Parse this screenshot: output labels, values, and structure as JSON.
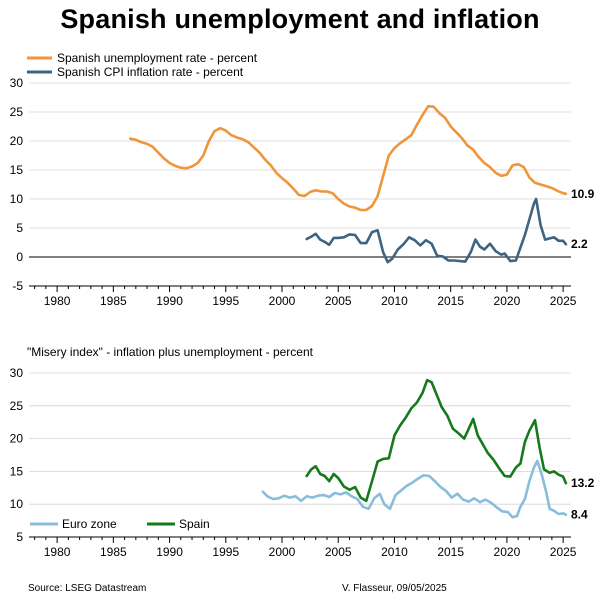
{
  "title": "Spanish unemployment and inflation",
  "source": "Source: LSEG Datastream",
  "credit": "V. Flasseur, 09/05/2025",
  "colors": {
    "unemployment": "#F0953A",
    "cpi": "#3D6482",
    "euro_zone": "#88BEDB",
    "spain": "#167A1C"
  },
  "chart_data": [
    {
      "type": "line",
      "subtitle": "",
      "xlim": [
        1977.5,
        2025.7
      ],
      "ylim": [
        -5,
        30
      ],
      "xticks": [
        1980,
        1985,
        1990,
        1995,
        2000,
        2005,
        2010,
        2015,
        2020,
        2025
      ],
      "yticks": [
        -5,
        0,
        5,
        10,
        15,
        20,
        25,
        30
      ],
      "grid": true,
      "zero_line": true,
      "legend_position": "top-left",
      "series": [
        {
          "name": "Spanish unemployment rate - percent",
          "color_key": "unemployment",
          "end_label": "10.9",
          "points": [
            [
              1986.5,
              20.4
            ],
            [
              1987,
              20.2
            ],
            [
              1987.5,
              19.8
            ],
            [
              1988,
              19.5
            ],
            [
              1988.5,
              19.0
            ],
            [
              1989,
              18.0
            ],
            [
              1989.5,
              17.0
            ],
            [
              1990,
              16.2
            ],
            [
              1990.5,
              15.7
            ],
            [
              1991,
              15.4
            ],
            [
              1991.5,
              15.3
            ],
            [
              1992,
              15.6
            ],
            [
              1992.5,
              16.2
            ],
            [
              1993,
              17.5
            ],
            [
              1993.5,
              20.0
            ],
            [
              1994,
              21.7
            ],
            [
              1994.5,
              22.2
            ],
            [
              1995,
              21.8
            ],
            [
              1995.5,
              21.0
            ],
            [
              1996,
              20.6
            ],
            [
              1996.5,
              20.3
            ],
            [
              1997,
              19.8
            ],
            [
              1997.5,
              18.9
            ],
            [
              1998,
              18.0
            ],
            [
              1998.5,
              16.8
            ],
            [
              1999,
              15.8
            ],
            [
              1999.5,
              14.5
            ],
            [
              2000,
              13.6
            ],
            [
              2000.5,
              12.8
            ],
            [
              2001,
              11.8
            ],
            [
              2001.5,
              10.7
            ],
            [
              2002,
              10.5
            ],
            [
              2002.5,
              11.2
            ],
            [
              2003,
              11.5
            ],
            [
              2003.5,
              11.3
            ],
            [
              2004,
              11.3
            ],
            [
              2004.5,
              11.0
            ],
            [
              2005,
              10.0
            ],
            [
              2005.5,
              9.2
            ],
            [
              2006,
              8.7
            ],
            [
              2006.5,
              8.5
            ],
            [
              2007,
              8.1
            ],
            [
              2007.5,
              8.1
            ],
            [
              2008,
              8.8
            ],
            [
              2008.5,
              10.5
            ],
            [
              2009,
              14.0
            ],
            [
              2009.5,
              17.5
            ],
            [
              2010,
              18.8
            ],
            [
              2010.5,
              19.6
            ],
            [
              2011,
              20.3
            ],
            [
              2011.5,
              21.0
            ],
            [
              2012,
              22.8
            ],
            [
              2012.5,
              24.5
            ],
            [
              2013,
              26.0
            ],
            [
              2013.5,
              25.9
            ],
            [
              2014,
              24.8
            ],
            [
              2014.5,
              24.0
            ],
            [
              2015,
              22.5
            ],
            [
              2015.5,
              21.5
            ],
            [
              2016,
              20.5
            ],
            [
              2016.5,
              19.2
            ],
            [
              2017,
              18.5
            ],
            [
              2017.5,
              17.2
            ],
            [
              2018,
              16.2
            ],
            [
              2018.5,
              15.5
            ],
            [
              2019,
              14.5
            ],
            [
              2019.5,
              14.0
            ],
            [
              2020,
              14.2
            ],
            [
              2020.5,
              15.8
            ],
            [
              2021,
              16.0
            ],
            [
              2021.5,
              15.5
            ],
            [
              2022,
              13.7
            ],
            [
              2022.5,
              12.8
            ],
            [
              2023,
              12.5
            ],
            [
              2023.5,
              12.2
            ],
            [
              2024,
              11.9
            ],
            [
              2024.5,
              11.4
            ],
            [
              2025,
              11.0
            ],
            [
              2025.25,
              10.9
            ]
          ]
        },
        {
          "name": "Spanish CPI inflation rate - percent",
          "color_key": "cpi",
          "end_label": "2.2",
          "points": [
            [
              2002.2,
              3.1
            ],
            [
              2002.6,
              3.5
            ],
            [
              2003,
              4.0
            ],
            [
              2003.4,
              3.0
            ],
            [
              2003.8,
              2.6
            ],
            [
              2004.2,
              2.1
            ],
            [
              2004.6,
              3.3
            ],
            [
              2005,
              3.3
            ],
            [
              2005.5,
              3.4
            ],
            [
              2006,
              3.9
            ],
            [
              2006.5,
              3.8
            ],
            [
              2007,
              2.4
            ],
            [
              2007.5,
              2.4
            ],
            [
              2008,
              4.3
            ],
            [
              2008.5,
              4.6
            ],
            [
              2009,
              0.8
            ],
            [
              2009.4,
              -0.9
            ],
            [
              2009.8,
              -0.3
            ],
            [
              2010.3,
              1.3
            ],
            [
              2010.8,
              2.2
            ],
            [
              2011.3,
              3.4
            ],
            [
              2011.8,
              2.9
            ],
            [
              2012.3,
              2.0
            ],
            [
              2012.8,
              2.9
            ],
            [
              2013.3,
              2.3
            ],
            [
              2013.8,
              0.2
            ],
            [
              2014.3,
              0.1
            ],
            [
              2014.8,
              -0.6
            ],
            [
              2015.3,
              -0.6
            ],
            [
              2015.8,
              -0.7
            ],
            [
              2016.3,
              -0.8
            ],
            [
              2016.8,
              0.9
            ],
            [
              2017.2,
              3.0
            ],
            [
              2017.6,
              1.8
            ],
            [
              2018,
              1.3
            ],
            [
              2018.5,
              2.3
            ],
            [
              2019,
              1.0
            ],
            [
              2019.5,
              0.4
            ],
            [
              2019.8,
              0.6
            ],
            [
              2020.3,
              -0.7
            ],
            [
              2020.8,
              -0.6
            ],
            [
              2021.2,
              1.6
            ],
            [
              2021.6,
              3.8
            ],
            [
              2022,
              6.5
            ],
            [
              2022.4,
              9.2
            ],
            [
              2022.6,
              10.0
            ],
            [
              2023,
              5.5
            ],
            [
              2023.4,
              3.0
            ],
            [
              2023.8,
              3.2
            ],
            [
              2024.2,
              3.4
            ],
            [
              2024.6,
              2.8
            ],
            [
              2025,
              2.8
            ],
            [
              2025.25,
              2.2
            ]
          ]
        }
      ]
    },
    {
      "type": "line",
      "subtitle": "\"Misery index\" - inflation plus unemployment - percent",
      "xlim": [
        1977.5,
        2025.7
      ],
      "ylim": [
        5,
        30
      ],
      "xticks": [
        1980,
        1985,
        1990,
        1995,
        2000,
        2005,
        2010,
        2015,
        2020,
        2025
      ],
      "yticks": [
        5,
        10,
        15,
        20,
        25,
        30
      ],
      "grid": true,
      "zero_line": false,
      "legend_position": "bottom-left",
      "series": [
        {
          "name": "Euro zone",
          "color_key": "euro_zone",
          "end_label": "8.4",
          "points": [
            [
              1998.3,
              11.9
            ],
            [
              1998.7,
              11.2
            ],
            [
              1999.2,
              10.8
            ],
            [
              1999.7,
              10.9
            ],
            [
              2000.2,
              11.3
            ],
            [
              2000.7,
              11.0
            ],
            [
              2001.2,
              11.2
            ],
            [
              2001.7,
              10.5
            ],
            [
              2002.2,
              11.2
            ],
            [
              2002.7,
              11.0
            ],
            [
              2003.2,
              11.3
            ],
            [
              2003.7,
              11.4
            ],
            [
              2004.2,
              11.1
            ],
            [
              2004.7,
              11.7
            ],
            [
              2005.2,
              11.5
            ],
            [
              2005.7,
              11.8
            ],
            [
              2006.2,
              11.2
            ],
            [
              2006.7,
              10.8
            ],
            [
              2007.2,
              9.6
            ],
            [
              2007.7,
              9.3
            ],
            [
              2008.2,
              10.9
            ],
            [
              2008.7,
              11.6
            ],
            [
              2009.1,
              10.0
            ],
            [
              2009.6,
              9.3
            ],
            [
              2010.1,
              11.4
            ],
            [
              2010.6,
              12.1
            ],
            [
              2011.1,
              12.8
            ],
            [
              2011.6,
              13.3
            ],
            [
              2012.1,
              13.9
            ],
            [
              2012.6,
              14.4
            ],
            [
              2013.1,
              14.3
            ],
            [
              2013.6,
              13.5
            ],
            [
              2014.1,
              12.6
            ],
            [
              2014.6,
              12.0
            ],
            [
              2015.1,
              11.0
            ],
            [
              2015.6,
              11.6
            ],
            [
              2016.1,
              10.7
            ],
            [
              2016.6,
              10.4
            ],
            [
              2017.1,
              10.9
            ],
            [
              2017.6,
              10.3
            ],
            [
              2018.1,
              10.7
            ],
            [
              2018.6,
              10.2
            ],
            [
              2019.1,
              9.5
            ],
            [
              2019.6,
              8.9
            ],
            [
              2020.1,
              8.8
            ],
            [
              2020.5,
              8.0
            ],
            [
              2020.9,
              8.2
            ],
            [
              2021.2,
              9.6
            ],
            [
              2021.6,
              10.8
            ],
            [
              2022,
              13.5
            ],
            [
              2022.4,
              15.6
            ],
            [
              2022.7,
              16.6
            ],
            [
              2023.1,
              14.5
            ],
            [
              2023.5,
              11.8
            ],
            [
              2023.8,
              9.3
            ],
            [
              2024.2,
              9.0
            ],
            [
              2024.6,
              8.5
            ],
            [
              2025,
              8.6
            ],
            [
              2025.25,
              8.4
            ]
          ]
        },
        {
          "name": "Spain",
          "color_key": "spain",
          "end_label": "13.2",
          "points": [
            [
              2002.2,
              14.3
            ],
            [
              2002.6,
              15.3
            ],
            [
              2003,
              15.8
            ],
            [
              2003.4,
              14.6
            ],
            [
              2003.8,
              14.3
            ],
            [
              2004.2,
              13.5
            ],
            [
              2004.6,
              14.6
            ],
            [
              2005,
              14.0
            ],
            [
              2005.5,
              12.7
            ],
            [
              2006,
              12.2
            ],
            [
              2006.5,
              12.6
            ],
            [
              2007,
              11.0
            ],
            [
              2007.5,
              10.5
            ],
            [
              2008,
              13.5
            ],
            [
              2008.5,
              16.5
            ],
            [
              2009,
              16.9
            ],
            [
              2009.5,
              17.0
            ],
            [
              2010,
              20.5
            ],
            [
              2010.5,
              22.0
            ],
            [
              2011,
              23.2
            ],
            [
              2011.5,
              24.6
            ],
            [
              2012,
              25.5
            ],
            [
              2012.5,
              27.0
            ],
            [
              2012.9,
              28.9
            ],
            [
              2013.3,
              28.6
            ],
            [
              2013.8,
              26.5
            ],
            [
              2014.2,
              24.8
            ],
            [
              2014.7,
              23.5
            ],
            [
              2015.2,
              21.5
            ],
            [
              2015.7,
              20.8
            ],
            [
              2016.2,
              20.0
            ],
            [
              2016.6,
              21.5
            ],
            [
              2017,
              23.0
            ],
            [
              2017.4,
              20.5
            ],
            [
              2017.8,
              19.3
            ],
            [
              2018.3,
              17.8
            ],
            [
              2018.8,
              16.8
            ],
            [
              2019.3,
              15.5
            ],
            [
              2019.8,
              14.3
            ],
            [
              2020.3,
              14.2
            ],
            [
              2020.8,
              15.6
            ],
            [
              2021.2,
              16.2
            ],
            [
              2021.6,
              19.5
            ],
            [
              2022,
              21.2
            ],
            [
              2022.5,
              22.8
            ],
            [
              2022.9,
              18.7
            ],
            [
              2023.3,
              15.3
            ],
            [
              2023.8,
              14.8
            ],
            [
              2024.2,
              15.0
            ],
            [
              2024.6,
              14.5
            ],
            [
              2025,
              14.2
            ],
            [
              2025.25,
              13.2
            ]
          ]
        }
      ]
    }
  ]
}
